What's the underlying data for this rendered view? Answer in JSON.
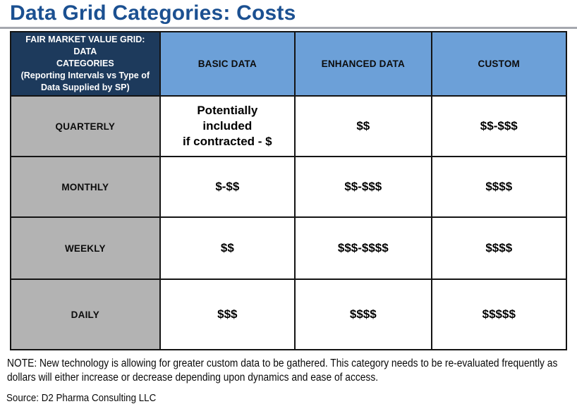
{
  "page": {
    "title": "Data Grid Categories: Costs"
  },
  "table": {
    "header": {
      "corner": "FAIR MARKET VALUE GRID: DATA\nCATEGORIES\n(Reporting Intervals vs Type of\nData Supplied by SP)",
      "columns": [
        "BASIC DATA",
        "ENHANCED DATA",
        "CUSTOM"
      ]
    },
    "rows": [
      {
        "label": "QUARTERLY",
        "cells": [
          "Potentially\nincluded\nif contracted - $",
          "$$",
          "$$-$$$"
        ]
      },
      {
        "label": "MONTHLY",
        "cells": [
          "$-$$",
          "$$-$$$",
          "$$$$"
        ]
      },
      {
        "label": "WEEKLY",
        "cells": [
          "$$",
          "$$$-$$$$",
          "$$$$"
        ]
      },
      {
        "label": "DAILY",
        "cells": [
          "$$$",
          "$$$$",
          "$$$$$"
        ]
      }
    ]
  },
  "note": {
    "text": "NOTE: New technology is allowing for greater custom data to be gathered. This category needs to be re-evaluated frequently as dollars will either increase or decrease depending upon dynamics and ease of access."
  },
  "source": {
    "text": "Source: D2 Pharma Consulting LLC"
  },
  "colors": {
    "title_blue": "#1B5091",
    "header_navy": "#1D3A5C",
    "header_light_blue": "#6CA0D8",
    "row_label_gray": "#B3B3B3",
    "rule_gray": "#A5A8AF"
  }
}
